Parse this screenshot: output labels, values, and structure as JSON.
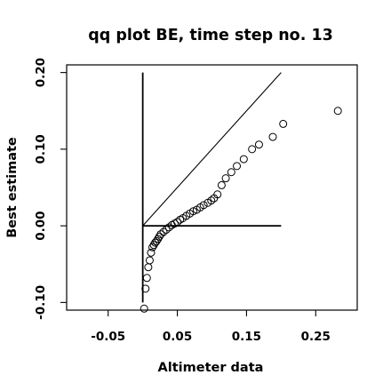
{
  "chart_data": {
    "type": "scatter",
    "title": "qq plot BE, time step no. 13",
    "xlabel": "Altimeter data",
    "ylabel": "Best estimate",
    "xlim": [
      -0.11,
      0.31
    ],
    "ylim": [
      -0.11,
      0.21
    ],
    "x_ticks": [
      -0.05,
      0.05,
      0.15,
      0.25
    ],
    "x_tick_labels": [
      "-0.05",
      "0.05",
      "0.15",
      "0.25"
    ],
    "y_ticks": [
      -0.1,
      0.0,
      0.1,
      0.2
    ],
    "y_tick_labels": [
      "-0.10",
      "0.00",
      "0.10",
      "0.20"
    ],
    "grid": false,
    "legend": "none",
    "reference_lines": [
      {
        "kind": "identity",
        "from": [
          0.0,
          0.0
        ],
        "to": [
          0.2,
          0.2
        ]
      },
      {
        "kind": "horizontal",
        "from": [
          0.0,
          0.0
        ],
        "to": [
          0.2,
          0.0
        ]
      },
      {
        "kind": "vertical",
        "from": [
          0.0,
          -0.1
        ],
        "to": [
          0.0,
          0.2
        ]
      }
    ],
    "series": [
      {
        "marker": "open-circle",
        "points": [
          [
            0.002,
            -0.108
          ],
          [
            0.004,
            -0.082
          ],
          [
            0.006,
            -0.068
          ],
          [
            0.008,
            -0.054
          ],
          [
            0.01,
            -0.045
          ],
          [
            0.012,
            -0.035
          ],
          [
            0.014,
            -0.028
          ],
          [
            0.016,
            -0.025
          ],
          [
            0.018,
            -0.022
          ],
          [
            0.02,
            -0.02
          ],
          [
            0.022,
            -0.017
          ],
          [
            0.024,
            -0.014
          ],
          [
            0.026,
            -0.011
          ],
          [
            0.03,
            -0.008
          ],
          [
            0.034,
            -0.005
          ],
          [
            0.038,
            -0.002
          ],
          [
            0.042,
            0.001
          ],
          [
            0.046,
            0.003
          ],
          [
            0.05,
            0.005
          ],
          [
            0.054,
            0.008
          ],
          [
            0.058,
            0.01
          ],
          [
            0.063,
            0.013
          ],
          [
            0.068,
            0.016
          ],
          [
            0.073,
            0.019
          ],
          [
            0.078,
            0.021
          ],
          [
            0.083,
            0.024
          ],
          [
            0.088,
            0.027
          ],
          [
            0.094,
            0.03
          ],
          [
            0.099,
            0.033
          ],
          [
            0.103,
            0.036
          ],
          [
            0.108,
            0.041
          ],
          [
            0.114,
            0.053
          ],
          [
            0.12,
            0.062
          ],
          [
            0.128,
            0.07
          ],
          [
            0.136,
            0.078
          ],
          [
            0.146,
            0.087
          ],
          [
            0.158,
            0.1
          ],
          [
            0.168,
            0.106
          ],
          [
            0.188,
            0.116
          ],
          [
            0.203,
            0.133
          ],
          [
            0.282,
            0.15
          ]
        ]
      }
    ]
  }
}
